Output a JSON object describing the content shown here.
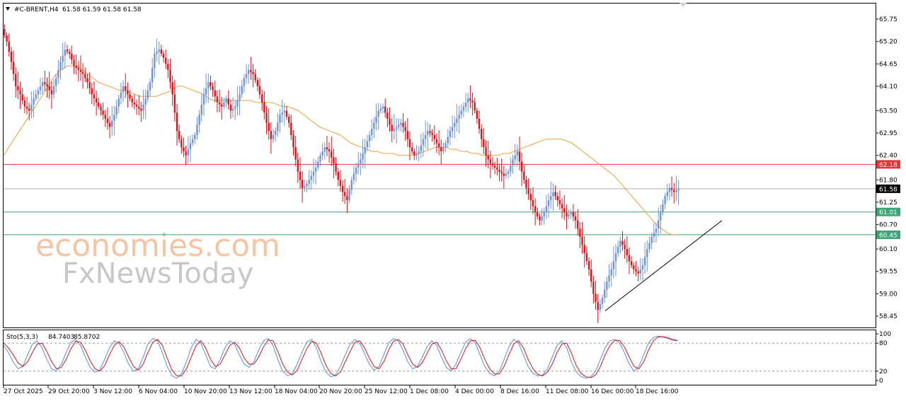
{
  "header": {
    "symbol": "#C-BRENT,H4",
    "ohlc": "61.58 61.59 61.58 61.58"
  },
  "watermark": {
    "line1": "economies.com",
    "line2": "FxNewsToday"
  },
  "colors": {
    "bull": "#6f93d6",
    "bear": "#d9141c",
    "ma": "#e8a33c",
    "resistance": "#e0353b",
    "support": "#3aa673",
    "current": "#000000",
    "stoch_main": "#5b8fd9",
    "stoch_signal": "#d9141c"
  },
  "chart_data": [
    {
      "type": "candlestick",
      "symbol": "#C-BRENT",
      "timeframe": "H4",
      "ylim": [
        58.45,
        66.0
      ],
      "y_ticks": [
        65.75,
        65.2,
        64.65,
        64.1,
        63.5,
        62.95,
        62.4,
        61.8,
        61.25,
        60.7,
        60.1,
        59.55,
        59.0,
        58.45
      ],
      "x_tick_labels": [
        "27 Oct 2025",
        "29 Oct 20:00",
        "3 Nov 12:00",
        "6 Nov 04:00",
        "10 Nov 20:00",
        "13 Nov 12:00",
        "18 Nov 04:00",
        "20 Nov 20:00",
        "25 Nov 12:00",
        "1 Dec 08:00",
        "4 Dec 00:00",
        "8 Dec 16:00",
        "11 Dec 08:00",
        "16 Dec 00:00",
        "18 Dec 16:00"
      ],
      "price_levels": [
        {
          "label": "62.18",
          "value": 62.18,
          "role": "resistance"
        },
        {
          "label": "61.58",
          "value": 61.58,
          "role": "current"
        },
        {
          "label": "61.01",
          "value": 61.01,
          "role": "support"
        },
        {
          "label": "60.45",
          "value": 60.45,
          "role": "support"
        }
      ],
      "trendline": [
        [
          0.855,
          58.58
        ],
        [
          1.02,
          60.8
        ]
      ],
      "close_series": [
        65.2,
        64.7,
        64.1,
        63.9,
        63.6,
        63.5,
        63.8,
        64.0,
        64.2,
        64.1,
        63.9,
        64.3,
        64.7,
        65.0,
        64.9,
        64.6,
        64.5,
        64.4,
        64.2,
        63.9,
        63.7,
        63.5,
        63.3,
        63.1,
        63.4,
        63.8,
        64.1,
        63.9,
        63.7,
        63.6,
        63.5,
        63.8,
        64.2,
        64.9,
        65.0,
        64.8,
        64.5,
        63.9,
        63.0,
        62.6,
        62.4,
        62.7,
        62.9,
        63.4,
        63.9,
        64.2,
        64.0,
        63.7,
        63.6,
        63.8,
        63.5,
        63.6,
        63.9,
        64.3,
        64.5,
        64.4,
        64.1,
        63.7,
        63.2,
        62.8,
        63.0,
        63.4,
        63.5,
        63.2,
        62.6,
        62.0,
        61.6,
        61.7,
        61.9,
        62.1,
        62.4,
        62.6,
        62.5,
        62.2,
        61.8,
        61.5,
        61.3,
        61.8,
        62.1,
        62.3,
        62.6,
        62.9,
        63.2,
        63.5,
        63.6,
        63.3,
        63.0,
        63.1,
        63.2,
        63.0,
        62.6,
        62.4,
        62.5,
        62.8,
        63.0,
        62.9,
        62.7,
        62.5,
        62.7,
        63.0,
        63.2,
        63.4,
        63.6,
        63.8,
        63.7,
        63.3,
        62.8,
        62.4,
        62.2,
        62.1,
        62.0,
        61.9,
        62.0,
        62.3,
        62.5,
        62.0,
        61.6,
        61.3,
        61.0,
        60.8,
        61.0,
        61.3,
        61.5,
        61.3,
        61.1,
        60.9,
        61.0,
        60.8,
        60.4,
        60.0,
        59.6,
        59.0,
        58.6,
        58.9,
        59.3,
        59.6,
        60.0,
        60.3,
        60.1,
        59.8,
        59.6,
        59.5,
        59.7,
        60.1,
        60.4,
        60.6,
        61.0,
        61.4,
        61.6,
        61.5,
        61.58
      ],
      "ma_series": [
        62.4,
        62.6,
        62.8,
        63.0,
        63.2,
        63.4,
        63.6,
        63.8,
        64.0,
        64.2,
        64.4,
        64.5,
        64.6,
        64.6,
        64.6,
        64.5,
        64.4,
        64.3,
        64.2,
        64.15,
        64.1,
        64.05,
        64.0,
        64.0,
        63.95,
        63.9,
        63.85,
        63.85,
        63.85,
        63.85,
        63.9,
        63.95,
        64.0,
        64.1,
        64.1,
        64.05,
        64.0,
        63.95,
        63.9,
        63.8,
        63.75,
        63.75,
        63.75,
        63.75,
        63.75,
        63.75,
        63.75,
        63.75,
        63.7,
        63.7,
        63.7,
        63.7,
        63.65,
        63.6,
        63.6,
        63.55,
        63.5,
        63.4,
        63.3,
        63.2,
        63.1,
        63.05,
        63.0,
        62.95,
        62.9,
        62.8,
        62.7,
        62.65,
        62.6,
        62.55,
        62.5,
        62.5,
        62.45,
        62.45,
        62.45,
        62.4,
        62.4,
        62.4,
        62.4,
        62.45,
        62.5,
        62.55,
        62.6,
        62.6,
        62.6,
        62.55,
        62.55,
        62.5,
        62.5,
        62.45,
        62.45,
        62.4,
        62.4,
        62.4,
        62.4,
        62.45,
        62.45,
        62.5,
        62.55,
        62.6,
        62.65,
        62.7,
        62.75,
        62.8,
        62.8,
        62.8,
        62.8,
        62.75,
        62.7,
        62.6,
        62.5,
        62.4,
        62.3,
        62.2,
        62.1,
        62.0,
        61.9,
        61.75,
        61.6,
        61.45,
        61.3,
        61.15,
        61.0,
        60.85,
        60.7,
        60.6,
        60.5,
        60.45,
        60.45
      ]
    },
    {
      "type": "line",
      "indicator": "Sto(5,3,3)",
      "main_value": "84.7403",
      "signal_value": "85.8702",
      "ylim": [
        0,
        100
      ],
      "y_ticks": [
        100,
        80,
        20,
        0
      ],
      "levels": [
        80,
        20
      ],
      "series": [
        {
          "role": "main",
          "values": [
            75,
            60,
            40,
            25,
            30,
            55,
            78,
            85,
            70,
            45,
            25,
            20,
            35,
            60,
            82,
            88,
            75,
            50,
            28,
            18,
            22,
            45,
            70,
            85,
            80,
            60,
            35,
            20,
            25,
            50,
            78,
            90,
            85,
            60,
            30,
            10,
            5,
            15,
            40,
            70,
            88,
            80,
            55,
            30,
            25,
            45,
            70,
            85,
            78,
            55,
            35,
            28,
            40,
            65,
            85,
            90,
            75,
            45,
            20,
            10,
            15,
            35,
            60,
            82,
            88,
            70,
            40,
            18,
            8,
            12,
            30,
            55,
            78,
            88,
            80,
            58,
            35,
            22,
            30,
            55,
            80,
            90,
            85,
            65,
            40,
            25,
            30,
            50,
            72,
            85,
            75,
            50,
            28,
            20,
            35,
            60,
            82,
            90,
            80,
            55,
            30,
            15,
            10,
            20,
            45,
            72,
            88,
            80,
            55,
            30,
            15,
            10,
            12,
            25,
            50,
            75,
            85,
            70,
            40,
            18,
            8,
            5,
            8,
            20,
            45,
            70,
            85,
            88,
            80,
            60,
            35,
            20,
            30,
            55,
            80,
            92,
            95,
            93,
            90,
            86,
            84.7
          ]
        },
        {
          "role": "signal",
          "values": [
            80,
            70,
            55,
            38,
            30,
            40,
            60,
            78,
            80,
            62,
            40,
            25,
            28,
            45,
            68,
            84,
            82,
            65,
            42,
            25,
            20,
            32,
            55,
            75,
            83,
            72,
            50,
            30,
            22,
            35,
            60,
            82,
            88,
            75,
            48,
            22,
            10,
            10,
            25,
            50,
            75,
            85,
            70,
            45,
            30,
            35,
            55,
            75,
            82,
            70,
            48,
            35,
            35,
            50,
            72,
            87,
            85,
            62,
            35,
            18,
            12,
            22,
            45,
            68,
            84,
            80,
            58,
            32,
            15,
            10,
            18,
            40,
            62,
            82,
            85,
            70,
            48,
            30,
            25,
            40,
            65,
            84,
            88,
            78,
            55,
            35,
            28,
            38,
            58,
            78,
            82,
            65,
            42,
            25,
            25,
            45,
            68,
            85,
            86,
            70,
            45,
            25,
            14,
            14,
            30,
            55,
            78,
            85,
            70,
            45,
            25,
            13,
            10,
            18,
            35,
            60,
            78,
            80,
            58,
            32,
            15,
            8,
            6,
            12,
            30,
            55,
            75,
            86,
            86,
            72,
            50,
            30,
            25,
            40,
            65,
            85,
            93,
            94,
            92,
            88,
            85.9
          ]
        }
      ]
    }
  ]
}
